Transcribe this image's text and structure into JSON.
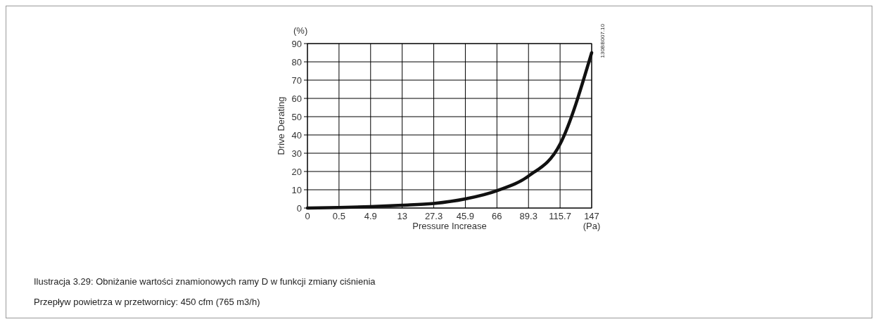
{
  "chart_data": {
    "type": "line",
    "ylabel": "Drive Derating",
    "xlabel": "Pressure Increase",
    "categories": [
      "0",
      "0.5",
      "4.9",
      "13",
      "27.3",
      "45.9",
      "66",
      "89.3",
      "115.7",
      "147"
    ],
    "series": [
      {
        "color": "#111111",
        "values": [
          0,
          0.3,
          0.8,
          1.5,
          2.5,
          5,
          9.5,
          17.5,
          35,
          85
        ]
      }
    ],
    "ylim": [
      0,
      90
    ],
    "yticks": [
      0,
      10,
      20,
      30,
      40,
      50,
      60,
      70,
      80,
      90
    ],
    "grid": true,
    "marker": "none",
    "line_style": "solid",
    "annotations": [
      "(%)",
      "(Pa)",
      "130BB007.10",
      "Ilustracja 3.29: Obniżanie wartości znamionowych ramy D w funkcji zmiany ciśnienia",
      "Przepływ powietrza w przetwornicy: 450 cfm (765 m3/h)"
    ]
  }
}
